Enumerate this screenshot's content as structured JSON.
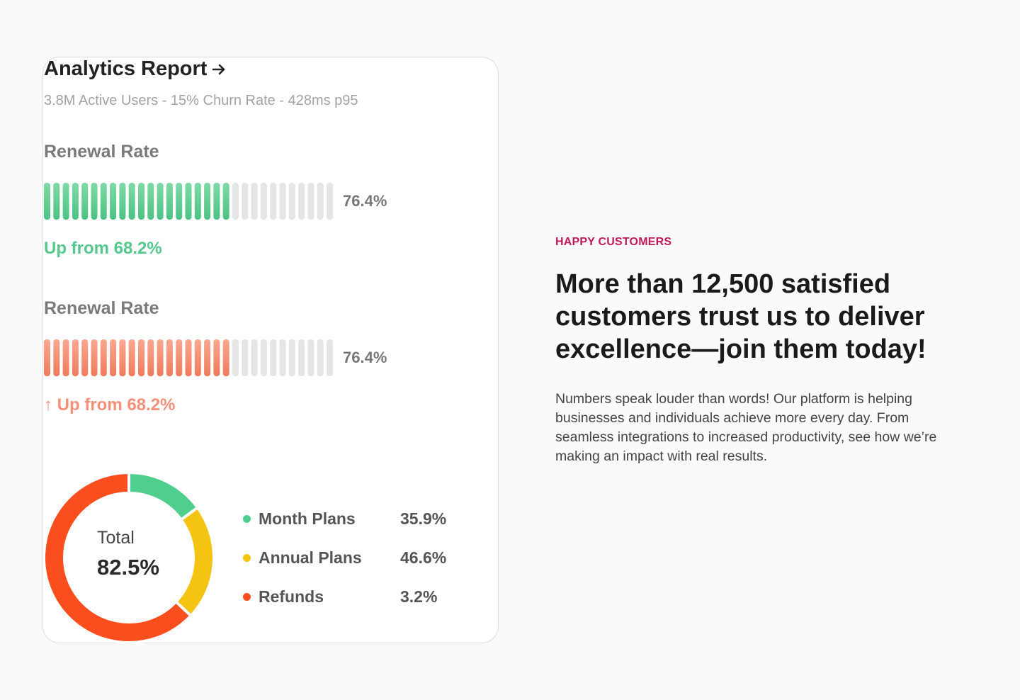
{
  "card": {
    "title": "Analytics Report",
    "subtitle": "3.8M Active Users - 15% Churn Rate - 428ms p95",
    "metrics": [
      {
        "label": "Renewal Rate",
        "value_text": "76.4%",
        "filled_segments": 20,
        "total_segments": 31,
        "footnote": "Up from 68.2%",
        "footnote_arrow": "",
        "color_top": "#7fdaa6",
        "color_bottom": "#4cc283",
        "foot_color": "#55c98d"
      },
      {
        "label": "Renewal Rate",
        "value_text": "76.4%",
        "filled_segments": 20,
        "total_segments": 31,
        "footnote": "Up from 68.2%",
        "footnote_arrow": "↑",
        "color_top": "#f9a890",
        "color_bottom": "#f07a5c",
        "foot_color": "#f5917a"
      }
    ],
    "donut": {
      "label": "Total",
      "value_text": "82.5%",
      "segments": [
        {
          "name": "Month Plans",
          "percent": 15,
          "color": "#4fcf8d"
        },
        {
          "name": "Annual Plans",
          "percent": 22,
          "color": "#f5c312"
        },
        {
          "name": "Refunds",
          "percent": 63,
          "color": "#fb4e1f"
        }
      ]
    },
    "legend": [
      {
        "name": "Month Plans",
        "value": "35.9%",
        "color": "#4fcf8d"
      },
      {
        "name": "Annual Plans",
        "value": "46.6%",
        "color": "#f5c312"
      },
      {
        "name": "Refunds",
        "value": "3.2%",
        "color": "#fb4e1f"
      }
    ],
    "track_color": "#e5e5e5"
  },
  "hero": {
    "eyebrow": "HAPPY CUSTOMERS",
    "headline": "More than 12,500 satisfied customers trust us to deliver excellence—join them today!",
    "body": "Numbers speak louder than words! Our platform is helping businesses and individuals achieve more every day. From seamless integrations to increased productivity, see how we’re making an impact with real results."
  }
}
